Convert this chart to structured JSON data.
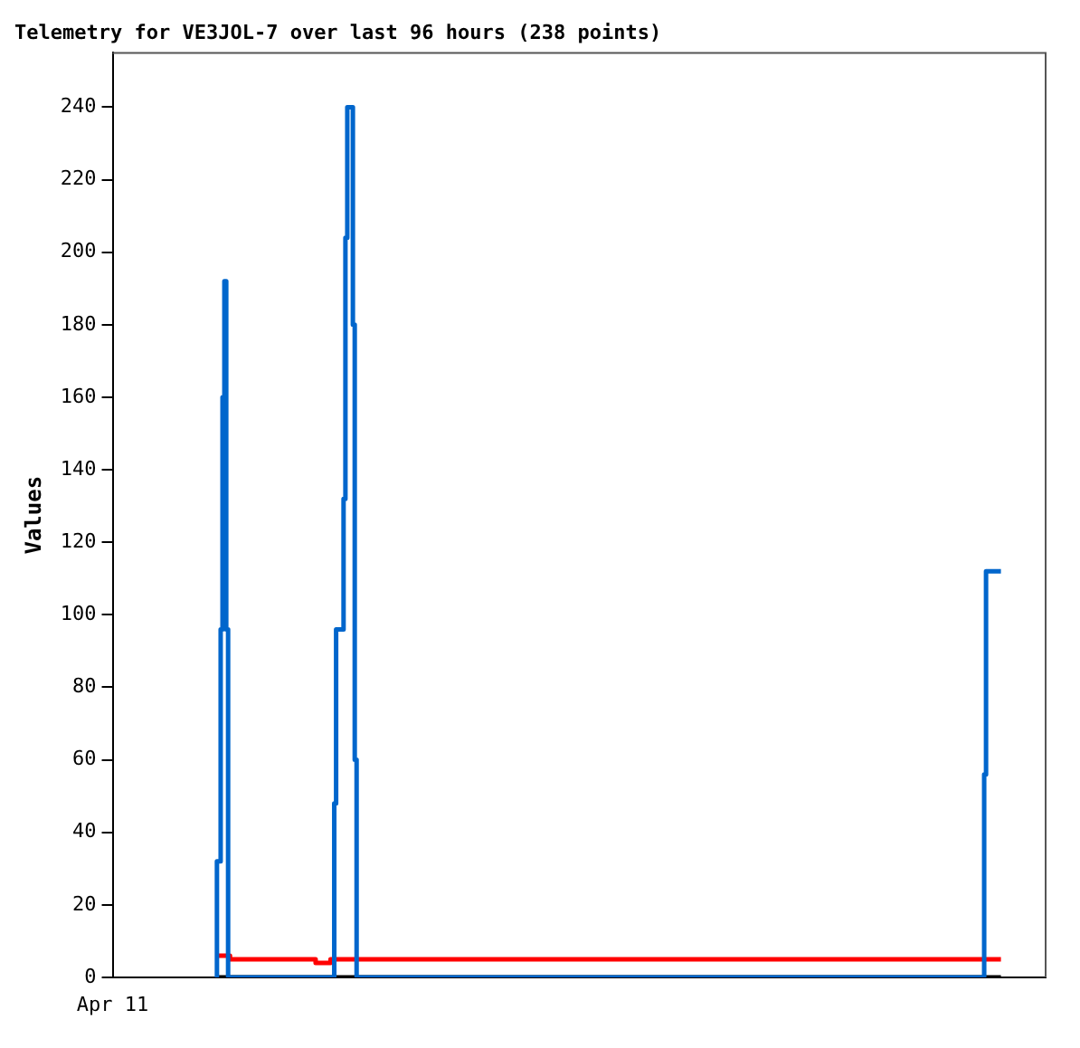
{
  "chart_data": {
    "type": "step",
    "title": "Telemetry for VE3JOL-7 over last 96 hours (238 points)",
    "ylabel": "Values",
    "annotations": [
      "Apr 11"
    ],
    "categories": [
      null,
      null,
      null,
      null,
      null,
      null,
      null,
      null,
      null,
      null,
      null,
      null,
      null,
      null,
      null,
      null,
      null,
      null,
      null,
      null,
      null,
      null,
      null,
      null,
      null,
      null,
      null,
      null,
      null,
      null,
      null,
      null,
      null,
      null,
      null,
      null,
      null,
      null,
      null,
      null,
      null,
      null,
      null,
      null,
      null,
      null,
      null,
      null,
      null,
      null,
      null,
      null,
      null,
      null,
      null,
      null,
      null,
      null,
      null,
      null,
      null,
      null,
      null,
      null,
      null,
      null,
      null,
      null,
      null,
      null,
      null,
      null,
      null,
      null,
      null,
      null,
      null,
      null,
      null,
      null,
      null,
      null,
      null,
      null,
      null,
      null,
      null,
      null,
      null,
      null,
      null,
      null,
      null,
      null,
      null,
      null,
      null,
      null,
      null,
      null,
      null,
      null,
      null,
      null,
      null,
      null,
      null,
      null,
      null,
      null,
      null,
      null,
      null,
      null,
      null,
      null,
      null,
      null,
      null,
      null,
      null,
      null,
      null,
      null,
      null,
      null,
      null,
      null,
      null,
      null,
      null,
      null,
      null,
      null,
      null,
      null,
      null,
      null,
      null,
      null,
      null,
      null,
      null,
      null,
      null,
      null,
      null,
      null,
      null,
      null,
      null,
      null,
      null,
      null,
      null,
      null,
      null,
      null,
      null,
      null,
      null,
      null,
      null,
      null,
      null,
      null,
      null,
      null,
      null,
      null,
      null,
      null,
      null,
      null,
      null,
      null,
      null,
      null,
      null,
      null,
      null,
      null,
      null,
      null,
      null,
      null,
      null,
      null,
      null,
      null,
      null,
      null,
      null,
      null,
      null,
      null,
      null,
      null,
      null,
      null,
      null,
      null,
      null,
      null,
      null,
      null,
      null,
      null,
      null,
      null,
      null,
      null,
      null,
      null,
      null,
      null,
      null,
      null,
      null,
      null,
      null,
      null,
      null,
      null,
      null,
      null,
      null,
      null,
      null,
      null,
      null,
      null,
      null,
      null,
      null,
      null,
      null,
      null,
      null,
      null,
      null,
      null,
      null,
      null,
      null,
      null,
      null,
      null,
      null,
      null,
      null,
      null,
      null,
      null,
      null,
      null,
      null,
      null,
      null,
      null,
      null,
      null,
      null,
      null,
      null,
      null,
      null,
      null,
      null,
      null,
      null,
      null,
      null,
      null,
      null,
      null,
      null,
      null,
      null,
      null,
      null,
      null,
      null,
      null,
      null,
      null,
      null,
      null,
      null,
      null,
      null,
      null,
      null,
      null,
      null,
      null,
      null,
      null,
      null,
      null,
      null,
      null,
      null,
      null,
      null,
      null,
      null,
      null,
      null,
      null,
      null,
      null,
      null,
      null,
      null,
      null,
      null,
      null,
      null,
      null,
      null,
      null,
      null,
      null,
      null,
      null,
      null,
      null,
      null,
      null,
      null,
      null,
      null,
      null,
      null,
      null,
      null,
      null,
      null,
      null,
      null,
      null,
      null,
      null,
      null,
      null,
      null,
      null,
      null,
      null,
      null,
      null,
      null,
      null,
      null,
      null,
      null,
      null,
      null,
      null,
      null,
      null,
      null,
      null,
      null,
      null,
      null,
      null,
      null,
      null,
      null,
      null,
      null,
      null,
      null,
      null,
      null,
      null,
      null,
      null,
      null,
      null,
      null,
      null,
      null,
      null,
      null,
      null,
      null,
      null,
      null,
      null,
      null,
      null,
      null,
      null,
      null,
      null,
      null,
      null,
      null,
      null,
      null,
      null,
      null,
      null,
      null,
      null,
      null,
      null,
      null,
      null,
      null,
      null,
      null,
      null,
      null,
      null,
      null,
      null,
      null,
      null,
      null
    ],
    "ylim": [
      0,
      255
    ],
    "yticks": [
      0,
      20,
      40,
      60,
      80,
      100,
      120,
      140,
      160,
      180,
      200,
      220,
      240
    ],
    "series": [
      {
        "color": "#0066cc",
        "values": [
          0,
          32,
          32,
          96,
          160,
          192,
          96,
          0,
          0,
          0,
          0,
          0,
          0,
          0,
          0,
          0,
          0,
          0,
          0,
          0,
          0,
          0,
          0,
          0,
          0,
          0,
          0,
          0,
          0,
          0,
          0,
          0,
          0,
          0,
          0,
          0,
          0,
          0,
          0,
          0,
          0,
          0,
          0,
          0,
          0,
          0,
          0,
          0,
          0,
          0,
          0,
          0,
          0,
          0,
          0,
          0,
          0,
          0,
          0,
          0,
          0,
          0,
          0,
          0,
          48,
          96,
          96,
          96,
          96,
          132,
          204,
          240,
          240,
          240,
          180,
          60,
          0,
          0,
          0,
          0,
          0,
          0,
          0,
          0,
          0,
          0,
          0,
          0,
          0,
          0,
          0,
          0,
          0,
          0,
          0,
          0,
          0,
          0,
          0,
          0,
          0,
          0,
          0,
          0,
          0,
          0,
          0,
          0,
          0,
          0,
          0,
          0,
          0,
          0,
          0,
          0,
          0,
          0,
          0,
          0,
          0,
          0,
          0,
          0,
          0,
          0,
          0,
          0,
          0,
          0,
          0,
          0,
          0,
          0,
          0,
          0,
          0,
          0,
          0,
          0,
          0,
          0,
          0,
          0,
          0,
          0,
          0,
          0,
          0,
          0,
          0,
          0,
          0,
          0,
          0,
          0,
          0,
          0,
          0,
          0,
          0,
          0,
          0,
          0,
          0,
          0,
          0,
          0,
          0,
          0,
          0,
          0,
          0,
          0,
          0,
          0,
          0,
          0,
          0,
          0,
          0,
          0,
          0,
          0,
          0,
          0,
          0,
          0,
          0,
          0,
          0,
          0,
          0,
          0,
          0,
          0,
          0,
          0,
          0,
          0,
          0,
          0,
          0,
          0,
          0,
          0,
          0,
          0,
          0,
          0,
          0,
          0,
          0,
          0,
          0,
          0,
          0,
          0,
          0,
          0,
          0,
          0,
          0,
          0,
          0,
          0,
          0,
          0,
          0,
          0,
          0,
          0,
          0,
          0,
          0,
          0,
          0,
          0,
          0,
          0,
          0,
          0,
          0,
          0,
          0,
          0,
          0,
          0,
          0,
          0,
          0,
          0,
          0,
          0,
          0,
          0,
          0,
          0,
          0,
          0,
          0,
          0,
          0,
          0,
          0,
          0,
          0,
          0,
          0,
          0,
          0,
          0,
          0,
          0,
          0,
          0,
          0,
          0,
          0,
          0,
          0,
          0,
          0,
          0,
          0,
          0,
          0,
          0,
          0,
          0,
          0,
          0,
          0,
          0,
          0,
          0,
          0,
          0,
          0,
          0,
          0,
          0,
          0,
          0,
          0,
          0,
          0,
          0,
          0,
          0,
          0,
          0,
          0,
          0,
          0,
          0,
          0,
          0,
          0,
          0,
          0,
          0,
          0,
          0,
          0,
          0,
          0,
          0,
          0,
          0,
          0,
          0,
          0,
          0,
          0,
          0,
          0,
          0,
          0,
          0,
          0,
          0,
          0,
          0,
          0,
          0,
          0,
          0,
          0,
          0,
          0,
          0,
          0,
          0,
          0,
          0,
          0,
          0,
          0,
          0,
          0,
          0,
          0,
          0,
          0,
          0,
          0,
          0,
          0,
          0,
          0,
          0,
          0,
          0,
          0,
          0,
          0,
          0,
          0,
          0,
          0,
          0,
          0,
          0,
          0,
          0,
          0,
          0,
          0,
          0,
          0,
          0,
          0,
          0,
          0,
          0,
          0,
          0,
          0,
          0,
          0,
          0,
          0,
          0,
          0,
          0,
          0,
          0,
          0,
          0,
          0,
          0,
          0,
          56,
          112,
          112,
          112,
          112,
          112,
          112,
          112,
          112,
          112
        ]
      },
      {
        "color": "#ff0000",
        "values": [
          null,
          6,
          6,
          6,
          6,
          6,
          6,
          6,
          5,
          5,
          5,
          5,
          5,
          5,
          5,
          5,
          5,
          5,
          5,
          5,
          5,
          5,
          5,
          5,
          5,
          5,
          5,
          5,
          5,
          5,
          5,
          5,
          5,
          5,
          5,
          5,
          5,
          5,
          5,
          5,
          5,
          5,
          5,
          5,
          5,
          5,
          5,
          5,
          5,
          5,
          5,
          5,
          5,
          5,
          4,
          4,
          4,
          4,
          4,
          4,
          4,
          4,
          5,
          5,
          5,
          5,
          5,
          5,
          5,
          5,
          5,
          5,
          5,
          5,
          5,
          5,
          5,
          5,
          5,
          5,
          5,
          5,
          5,
          5,
          5,
          5,
          5,
          5,
          5,
          5,
          5,
          5,
          5,
          5,
          5,
          5,
          5,
          5,
          5,
          5,
          5,
          5,
          5,
          5,
          5,
          5,
          5,
          5,
          5,
          5,
          5,
          5,
          5,
          5,
          5,
          5,
          5,
          5,
          5,
          5,
          5,
          5,
          5,
          5,
          5,
          5,
          5,
          5,
          5,
          5,
          5,
          5,
          5,
          5,
          5,
          5,
          5,
          5,
          5,
          5,
          5,
          5,
          5,
          5,
          5,
          5,
          5,
          5,
          5,
          5,
          5,
          5,
          5,
          5,
          5,
          5,
          5,
          5,
          5,
          5,
          5,
          5,
          5,
          5,
          5,
          5,
          5,
          5,
          5,
          5,
          5,
          5,
          5,
          5,
          5,
          5,
          5,
          5,
          5,
          5,
          5,
          5,
          5,
          5,
          5,
          5,
          5,
          5,
          5,
          5,
          5,
          5,
          5,
          5,
          5,
          5,
          5,
          5,
          5,
          5,
          5,
          5,
          5,
          5,
          5,
          5,
          5,
          5,
          5,
          5,
          5,
          5,
          5,
          5,
          5,
          5,
          5,
          5,
          5,
          5,
          5,
          5,
          5,
          5,
          5,
          5,
          5,
          5,
          5,
          5,
          5,
          5,
          5,
          5,
          5,
          5,
          5,
          5,
          5,
          5,
          5,
          5,
          5,
          5,
          5,
          5,
          5,
          5,
          5,
          5,
          5,
          5,
          5,
          5,
          5,
          5,
          5,
          5,
          5,
          5,
          5,
          5,
          5,
          5,
          5,
          5,
          5,
          5,
          5,
          5,
          5,
          5,
          5,
          5,
          5,
          5,
          5,
          5,
          5,
          5,
          5,
          5,
          5,
          5,
          5,
          5,
          5,
          5,
          5,
          5,
          5,
          5,
          5,
          5,
          5,
          5,
          5,
          5,
          5,
          5,
          5,
          5,
          5,
          5,
          5,
          5,
          5,
          5,
          5,
          5,
          5,
          5,
          5,
          5,
          5,
          5,
          5,
          5,
          5,
          5,
          5,
          5,
          5,
          5,
          5,
          5,
          5,
          5,
          5,
          5,
          5,
          5,
          5,
          5,
          5,
          5,
          5,
          5,
          5,
          5,
          5,
          5,
          5,
          5,
          5,
          5,
          5,
          5,
          5,
          5,
          5,
          5,
          5,
          5,
          5,
          5,
          5,
          5,
          5,
          5,
          5,
          5,
          5,
          5,
          5,
          5,
          5,
          5,
          5,
          5,
          5,
          5,
          5,
          5,
          5,
          5,
          5,
          5,
          5,
          5,
          5,
          5,
          5,
          5,
          5,
          5,
          5,
          5,
          5,
          5,
          5,
          5,
          5,
          5,
          5,
          5,
          5,
          5,
          5,
          5,
          5,
          5,
          5,
          5,
          5,
          5,
          5,
          5,
          5,
          5,
          5,
          5,
          5,
          5,
          5,
          5,
          5,
          5,
          5,
          5,
          5,
          5,
          5
        ]
      },
      {
        "color": "#000000",
        "values": [
          null,
          0,
          0,
          0,
          0,
          0,
          0,
          0,
          0,
          0,
          0,
          0,
          0,
          0,
          0,
          0,
          0,
          0,
          0,
          0,
          0,
          0,
          0,
          0,
          0,
          0,
          0,
          0,
          0,
          0,
          0,
          0,
          0,
          0,
          0,
          0,
          0,
          0,
          0,
          0,
          0,
          0,
          0,
          0,
          0,
          0,
          0,
          0,
          0,
          0,
          0,
          0,
          0,
          0,
          0,
          0,
          0,
          0,
          0,
          0,
          0,
          0,
          0,
          0,
          0,
          0,
          0,
          0,
          0,
          0,
          0,
          0,
          0,
          0,
          0,
          0,
          0,
          0,
          0,
          0,
          0,
          0,
          0,
          0,
          0,
          0,
          0,
          0,
          0,
          0,
          0,
          0,
          0,
          0,
          0,
          0,
          0,
          0,
          0,
          0,
          0,
          0,
          0,
          0,
          0,
          0,
          0,
          0,
          0,
          0,
          0,
          0,
          0,
          0,
          0,
          0,
          0,
          0,
          0,
          0,
          0,
          0,
          0,
          0,
          0,
          0,
          0,
          0,
          0,
          0,
          0,
          0,
          0,
          0,
          0,
          0,
          0,
          0,
          0,
          0,
          0,
          0,
          0,
          0,
          0,
          0,
          0,
          0,
          0,
          0,
          0,
          0,
          0,
          0,
          0,
          0,
          0,
          0,
          0,
          0,
          0,
          0,
          0,
          0,
          0,
          0,
          0,
          0,
          0,
          0,
          0,
          0,
          0,
          0,
          0,
          0,
          0,
          0,
          0,
          0,
          0,
          0,
          0,
          0,
          0,
          0,
          0,
          0,
          0,
          0,
          0,
          0,
          0,
          0,
          0,
          0,
          0,
          0,
          0,
          0,
          0,
          0,
          0,
          0,
          0,
          0,
          0,
          0,
          0,
          0,
          0,
          0,
          0,
          0,
          0,
          0,
          0,
          0,
          0,
          0,
          0,
          0,
          0,
          0,
          0,
          0,
          0,
          0,
          0,
          0,
          0,
          0,
          0,
          0,
          0,
          0,
          0,
          0,
          0,
          0,
          0,
          0,
          0,
          0,
          0,
          0,
          0,
          0,
          0,
          0,
          0,
          0,
          0,
          0,
          0,
          0,
          0,
          0,
          0,
          0,
          0,
          0,
          0,
          0,
          0,
          0,
          0,
          0,
          0,
          0,
          0,
          0,
          0,
          0,
          0,
          0,
          0,
          0,
          0,
          0,
          0,
          0,
          0,
          0,
          0,
          0,
          0,
          0,
          0,
          0,
          0,
          0,
          0,
          0,
          0,
          0,
          0,
          0,
          0,
          0,
          0,
          0,
          0,
          0,
          0,
          0,
          0,
          0,
          0,
          0,
          0,
          0,
          0,
          0,
          0,
          0,
          0,
          0,
          0,
          0,
          0,
          0,
          0,
          0,
          0,
          0,
          0,
          0,
          0,
          0,
          0,
          0,
          0,
          0,
          0,
          0,
          0,
          0,
          0,
          0,
          0,
          0,
          0,
          0,
          0,
          0,
          0,
          0,
          0,
          0,
          0,
          0,
          0,
          0,
          0,
          0,
          0,
          0,
          0,
          0,
          0,
          0,
          0,
          0,
          0,
          0,
          0,
          0,
          0,
          0,
          0,
          0,
          0,
          0,
          0,
          0,
          0,
          0,
          0,
          0,
          0,
          0,
          0,
          0,
          0,
          0,
          0,
          0,
          0,
          0,
          0,
          0,
          0,
          0,
          0,
          0,
          0,
          0,
          0,
          0,
          0,
          0,
          0,
          0,
          0,
          0,
          0,
          0,
          0,
          0,
          0,
          0,
          0,
          0,
          0,
          0,
          0,
          0,
          0,
          0,
          0,
          0,
          0
        ]
      }
    ]
  }
}
